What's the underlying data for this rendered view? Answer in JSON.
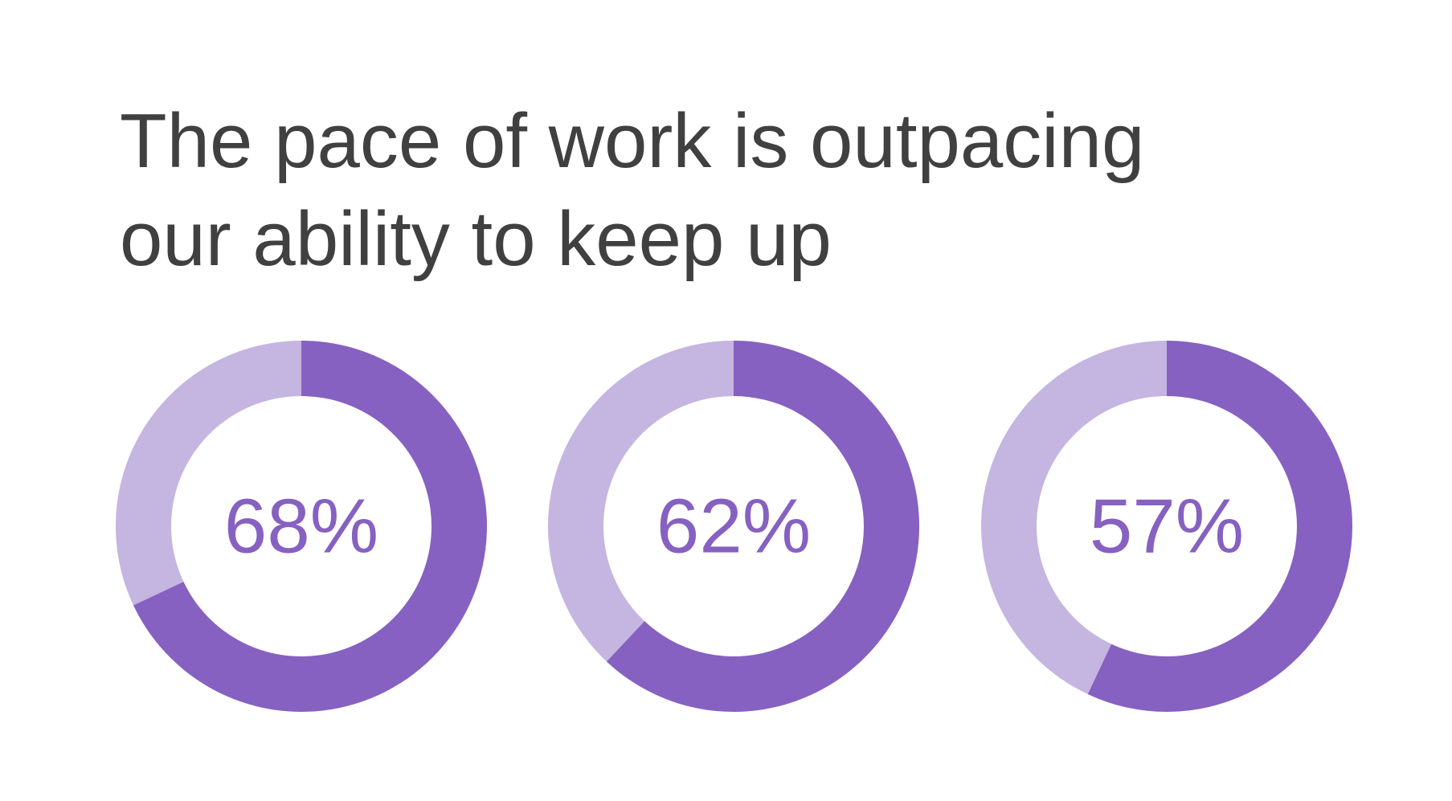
{
  "title": [
    "The pace of work is outpacing",
    "our ability to keep up"
  ],
  "chart_data": [
    {
      "type": "donut",
      "values": [
        68,
        32
      ],
      "value_labels": [
        "68%",
        null
      ],
      "colors": [
        "#8661c1",
        "#c5b5e1"
      ]
    },
    {
      "type": "donut",
      "values": [
        62,
        38
      ],
      "value_labels": [
        "62%",
        null
      ],
      "colors": [
        "#8661c1",
        "#c5b5e1"
      ]
    },
    {
      "type": "donut",
      "values": [
        57,
        43
      ],
      "value_labels": [
        "57%",
        null
      ],
      "colors": [
        "#8661c1",
        "#c5b5e1"
      ]
    }
  ]
}
